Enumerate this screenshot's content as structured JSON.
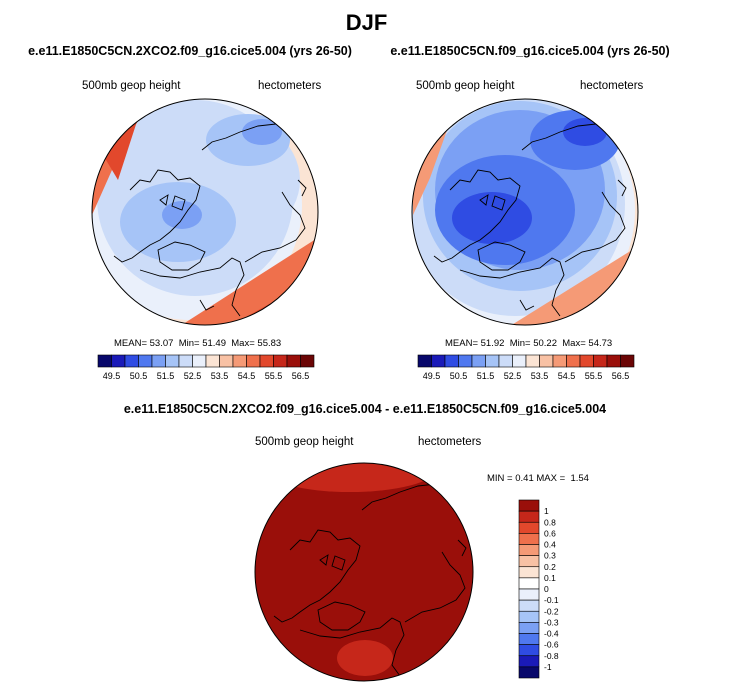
{
  "title": "DJF",
  "chart_data": [
    {
      "type": "heatmap",
      "title": "e.e11.E1850C5CN.2XCO2.f09_g16.cice5.004 (yrs 26-50)",
      "variable": "500mb geop height",
      "units": "hectometers",
      "stats": {
        "mean_label": "MEAN=",
        "mean": "53.07",
        "min_label": "Min=",
        "min": "51.49",
        "max_label": "Max=",
        "max": "55.83"
      },
      "colorbar": {
        "ticks": [
          "49.5",
          "50.5",
          "51.5",
          "52.5",
          "53.5",
          "54.5",
          "55.5",
          "56.5"
        ],
        "colors": [
          "#08086b",
          "#1a1ab8",
          "#2f4ce3",
          "#4f78ef",
          "#7ba0f4",
          "#a6c4f7",
          "#ccdcf8",
          "#eaf0fb",
          "#fbe4d4",
          "#f8c1a4",
          "#f59a76",
          "#ef704c",
          "#e2482c",
          "#c6271a",
          "#9a0f0a",
          "#6b0505"
        ]
      }
    },
    {
      "type": "heatmap",
      "title": "e.e11.E1850C5CN.f09_g16.cice5.004 (yrs 26-50)",
      "variable": "500mb geop height",
      "units": "hectometers",
      "stats": {
        "mean_label": "MEAN=",
        "mean": "51.92",
        "min_label": "Min=",
        "min": "50.22",
        "max_label": "Max=",
        "max": "54.73"
      },
      "colorbar": {
        "ticks": [
          "49.5",
          "50.5",
          "51.5",
          "52.5",
          "53.5",
          "54.5",
          "55.5",
          "56.5"
        ],
        "colors": [
          "#08086b",
          "#1a1ab8",
          "#2f4ce3",
          "#4f78ef",
          "#7ba0f4",
          "#a6c4f7",
          "#ccdcf8",
          "#eaf0fb",
          "#fbe4d4",
          "#f8c1a4",
          "#f59a76",
          "#ef704c",
          "#e2482c",
          "#c6271a",
          "#9a0f0a",
          "#6b0505"
        ]
      }
    },
    {
      "type": "heatmap",
      "title": "e.e11.E1850C5CN.2XCO2.f09_g16.cice5.004 - e.e11.E1850C5CN.f09_g16.cice5.004",
      "variable": "500mb geop height",
      "units": "hectometers",
      "stats": {
        "min_label": "MIN =",
        "min": "0.41",
        "max_label": "MAX =",
        "max": "1.54"
      },
      "colorbar": {
        "ticks": [
          "1",
          "0.8",
          "0.6",
          "0.4",
          "0.3",
          "0.2",
          "0.1",
          "0",
          "-0.1",
          "-0.2",
          "-0.3",
          "-0.4",
          "-0.6",
          "-0.8",
          "-1"
        ],
        "colors": [
          "#9a0f0a",
          "#c6271a",
          "#e2482c",
          "#ef704c",
          "#f59a76",
          "#f8c1a4",
          "#fbe4d4",
          "#ffffff",
          "#eaf0fb",
          "#ccdcf8",
          "#a6c4f7",
          "#7ba0f4",
          "#4f78ef",
          "#2f4ce3",
          "#1a1ab8",
          "#08086b"
        ]
      }
    }
  ]
}
